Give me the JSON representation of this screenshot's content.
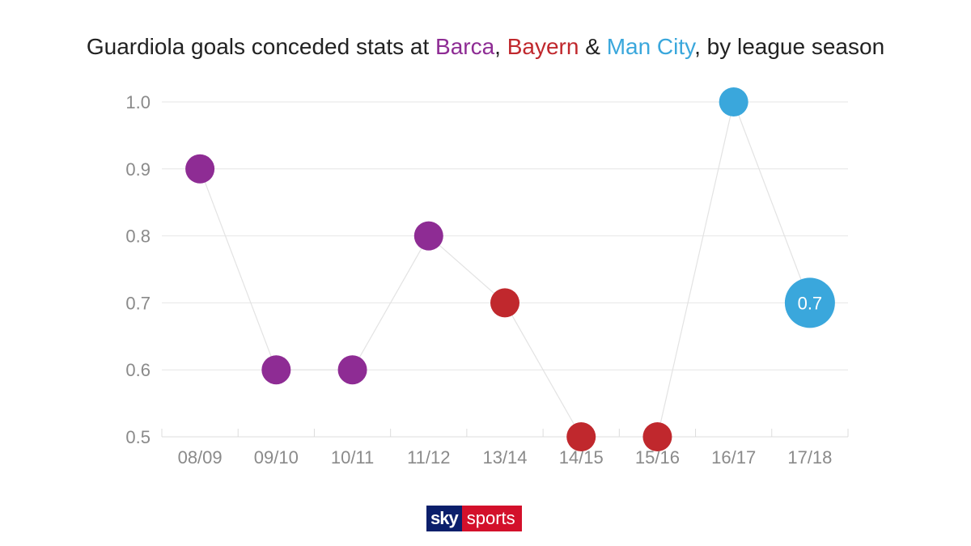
{
  "chart_data": {
    "type": "scatter",
    "title": {
      "parts": [
        {
          "text": "Guardiola goals conceded stats at ",
          "color": "#222222"
        },
        {
          "text": "Barca",
          "color": "#8e2c94"
        },
        {
          "text": ", ",
          "color": "#222222"
        },
        {
          "text": "Bayern",
          "color": "#c0282d"
        },
        {
          "text": " & ",
          "color": "#222222"
        },
        {
          "text": "Man City",
          "color": "#3aa7dc"
        },
        {
          "text": ", by league season",
          "color": "#222222"
        }
      ]
    },
    "categories": [
      "08/09",
      "09/10",
      "10/11",
      "11/12",
      "13/14",
      "14/15",
      "15/16",
      "16/17",
      "17/18"
    ],
    "values": [
      0.9,
      0.6,
      0.6,
      0.8,
      0.7,
      0.5,
      0.5,
      1.0,
      0.7
    ],
    "point_clubs": [
      "Barca",
      "Barca",
      "Barca",
      "Barca",
      "Bayern",
      "Bayern",
      "Bayern",
      "Man City",
      "Man City"
    ],
    "club_colors": {
      "Barca": "#8e2c94",
      "Bayern": "#c0282d",
      "Man City": "#3aa7dc"
    },
    "ylim": [
      0.5,
      1.0
    ],
    "yticks": [
      "0.5",
      "0.6",
      "0.7",
      "0.8",
      "0.9",
      "1.0"
    ],
    "highlight": {
      "index": 8,
      "label": "0.7"
    },
    "grid": true,
    "connecting_line": true
  },
  "branding": {
    "sky": "sky",
    "sports": "sports"
  }
}
